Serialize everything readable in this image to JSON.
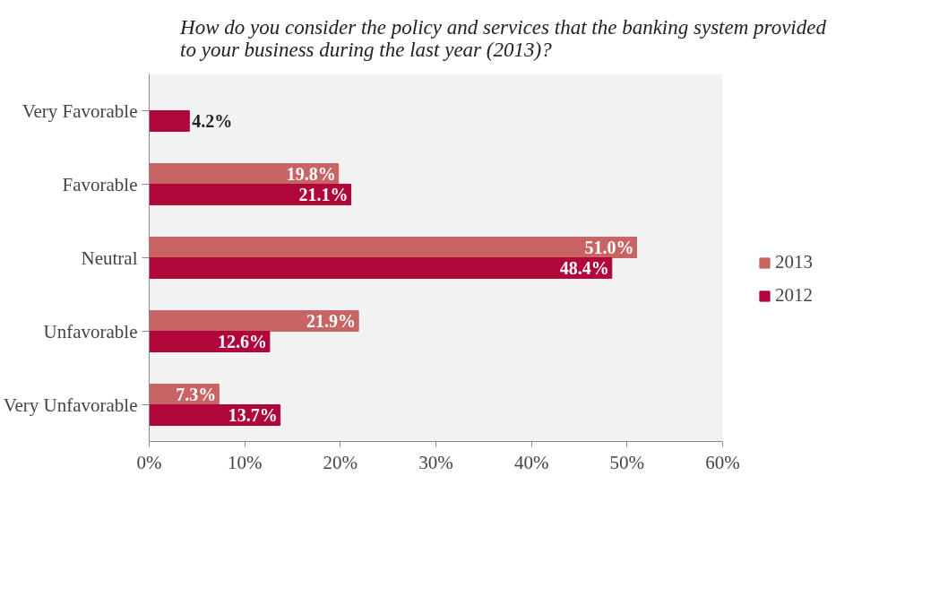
{
  "chart_data": {
    "type": "bar",
    "orientation": "horizontal",
    "title": "How do you consider the policy and services that the banking system provided\nto your business during the last year (2013)?",
    "categories": [
      "Very Favorable",
      "Favorable",
      "Neutral",
      "Unfavorable",
      "Very Unfavorable"
    ],
    "series": [
      {
        "name": "2013",
        "color": "#c96464",
        "values": [
          null,
          19.8,
          51.0,
          21.9,
          7.3
        ],
        "value_labels": [
          null,
          "19.8%",
          "51.0%",
          "21.9%",
          "7.3%"
        ]
      },
      {
        "name": "2012",
        "color": "#b0063a",
        "values": [
          4.2,
          21.1,
          48.4,
          12.6,
          13.7
        ],
        "value_labels": [
          "4.2%",
          "21.1%",
          "48.4%",
          "12.6%",
          "13.7%"
        ]
      }
    ],
    "xlim": [
      0,
      60
    ],
    "xticks": [
      {
        "value": 0,
        "label": "0%"
      },
      {
        "value": 10,
        "label": "10%"
      },
      {
        "value": 20,
        "label": "20%"
      },
      {
        "value": 30,
        "label": "30%"
      },
      {
        "value": 40,
        "label": "40%"
      },
      {
        "value": 50,
        "label": "50%"
      },
      {
        "value": 60,
        "label": "60%"
      }
    ],
    "grid": false,
    "legend": "right"
  }
}
